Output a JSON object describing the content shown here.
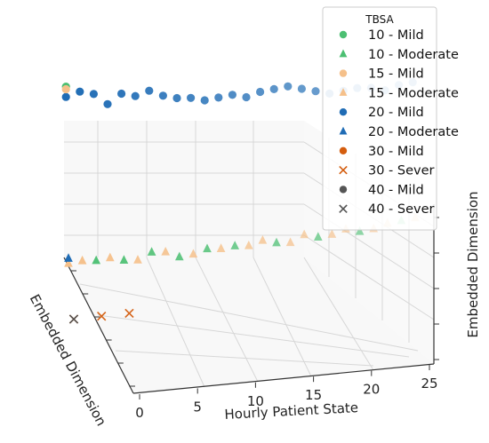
{
  "chart_data": {
    "type": "scatter",
    "projection": "3d",
    "title": "",
    "xlabel": "Hourly Patient State",
    "ylabel": "Embedded Dimension",
    "zlabel": "Embedded Dimension",
    "x_ticks": [
      "0",
      "5",
      "10",
      "15",
      "20",
      "25"
    ],
    "xlim": [
      0,
      25
    ],
    "grid": true,
    "legend": {
      "title": "TBSA",
      "placement": "top-right",
      "entries": [
        {
          "label": "10 - Mild",
          "marker": "circle",
          "color": "#4cbf72"
        },
        {
          "label": "10 - Moderate",
          "marker": "triangle",
          "color": "#4cbf72"
        },
        {
          "label": "15 - Mild",
          "marker": "circle",
          "color": "#f5c08a"
        },
        {
          "label": "15 - Moderate",
          "marker": "triangle",
          "color": "#f5c08a"
        },
        {
          "label": "20 - Mild",
          "marker": "circle",
          "color": "#1f6cb5"
        },
        {
          "label": "20 - Moderate",
          "marker": "triangle",
          "color": "#1f6cb5"
        },
        {
          "label": "30 - Mild",
          "marker": "circle",
          "color": "#d45d0e"
        },
        {
          "label": "30 - Sever",
          "marker": "x",
          "color": "#d45d0e"
        },
        {
          "label": "40 - Mild",
          "marker": "circle",
          "color": "#555555"
        },
        {
          "label": "40 - Sever",
          "marker": "x",
          "color": "#555555"
        }
      ]
    },
    "series": [
      {
        "name": "20 - Mild",
        "marker": "circle",
        "color": "#1f6cb5",
        "x": [
          0,
          1,
          2,
          3,
          4,
          5,
          6,
          7,
          8,
          9,
          10,
          11,
          12,
          13,
          14,
          15,
          16,
          17,
          18,
          19,
          20,
          21,
          22,
          23,
          24,
          25
        ],
        "y": [
          0.52,
          0.52,
          0.52,
          0.52,
          0.52,
          0.52,
          0.52,
          0.52,
          0.52,
          0.52,
          0.52,
          0.52,
          0.52,
          0.52,
          0.52,
          0.52,
          0.52,
          0.52,
          0.52,
          0.52,
          0.52,
          0.52,
          0.52,
          0.52,
          0.52,
          0.52
        ],
        "z": [
          0.86,
          0.88,
          0.87,
          0.83,
          0.87,
          0.86,
          0.88,
          0.86,
          0.85,
          0.85,
          0.84,
          0.85,
          0.86,
          0.85,
          0.87,
          0.88,
          0.89,
          0.88,
          0.87,
          0.86,
          0.87,
          0.88,
          0.88,
          0.87,
          0.89,
          0.9
        ]
      },
      {
        "name": "10 - Mild",
        "marker": "circle",
        "color": "#4cbf72",
        "x": [
          0
        ],
        "y": [
          0.52
        ],
        "z": [
          0.9
        ]
      },
      {
        "name": "15 - Mild",
        "marker": "circle",
        "color": "#f5c08a",
        "x": [
          0
        ],
        "y": [
          0.52
        ],
        "z": [
          0.89
        ]
      },
      {
        "name": "10 - Moderate",
        "marker": "triangle",
        "color": "#4cbf72",
        "x": [
          2,
          4,
          6,
          8,
          10,
          12,
          15,
          18,
          21,
          24
        ],
        "y": [
          0.45,
          0.45,
          0.45,
          0.45,
          0.45,
          0.45,
          0.45,
          0.45,
          0.45,
          0.45
        ],
        "z": [
          0.24,
          0.24,
          0.27,
          0.25,
          0.28,
          0.29,
          0.3,
          0.32,
          0.34,
          0.38
        ]
      },
      {
        "name": "15 - Moderate",
        "marker": "triangle",
        "color": "#f5c08a",
        "x": [
          0,
          1,
          3,
          5,
          7,
          9,
          11,
          13,
          14,
          16,
          17,
          19,
          20,
          22,
          23,
          25
        ],
        "y": [
          0.45,
          0.45,
          0.45,
          0.45,
          0.45,
          0.45,
          0.45,
          0.45,
          0.45,
          0.45,
          0.45,
          0.45,
          0.45,
          0.45,
          0.45,
          0.45
        ],
        "z": [
          0.23,
          0.24,
          0.25,
          0.24,
          0.27,
          0.26,
          0.28,
          0.29,
          0.31,
          0.3,
          0.33,
          0.33,
          0.35,
          0.35,
          0.37,
          0.39
        ]
      },
      {
        "name": "20 - Moderate",
        "marker": "triangle",
        "color": "#1f6cb5",
        "x": [
          0
        ],
        "y": [
          0.45
        ],
        "z": [
          0.25
        ]
      },
      {
        "name": "30 - Sever",
        "marker": "x",
        "color": "#d45d0e",
        "x": [
          0,
          2,
          4
        ],
        "y": [
          0.3,
          0.3,
          0.3
        ],
        "z": [
          0.05,
          0.06,
          0.07
        ]
      },
      {
        "name": "40 - Sever",
        "marker": "x",
        "color": "#555555",
        "x": [
          0
        ],
        "y": [
          0.3
        ],
        "z": [
          0.05
        ]
      }
    ]
  }
}
